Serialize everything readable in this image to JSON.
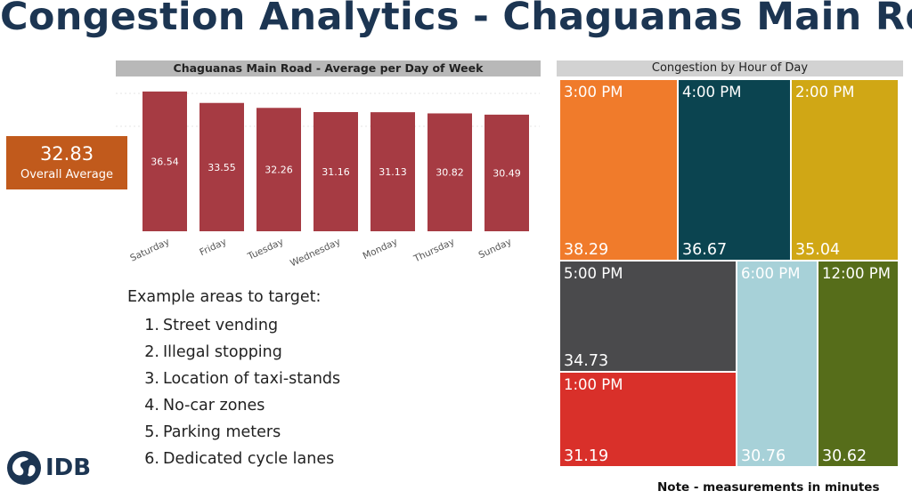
{
  "title": "Congestion Analytics - Chaguanas Main Rd",
  "kpi": {
    "value": "32.83",
    "label": "Overall Average"
  },
  "chart_data": [
    {
      "type": "bar",
      "title": "Chaguanas Main Road - Average per Day of Week",
      "categories": [
        "Saturday",
        "Friday",
        "Tuesday",
        "Wednesday",
        "Monday",
        "Thursday",
        "Sunday"
      ],
      "values": [
        36.54,
        33.55,
        32.26,
        31.16,
        31.13,
        30.82,
        30.49
      ],
      "value_labels": [
        "36.54",
        "33.55",
        "32.26",
        "31.16",
        "31.13",
        "30.82",
        "30.49"
      ],
      "xlabel": "",
      "ylabel": "",
      "ylim": [
        0,
        40
      ],
      "bar_color": "#a63b43"
    },
    {
      "type": "treemap",
      "title": "Congestion by Hour of Day",
      "tiles": [
        {
          "label": "3:00 PM",
          "value": 38.29,
          "display": "38.29",
          "color": "#f07b2b"
        },
        {
          "label": "4:00 PM",
          "value": 36.67,
          "display": "36.67",
          "color": "#0b4450"
        },
        {
          "label": "2:00 PM",
          "value": 35.04,
          "display": "35.04",
          "color": "#d0a715"
        },
        {
          "label": "5:00 PM",
          "value": 34.73,
          "display": "34.73",
          "color": "#4a4a4c"
        },
        {
          "label": "6:00 PM",
          "value": 30.76,
          "display": "30.76",
          "color": "#a7d1d8"
        },
        {
          "label": "12:00 PM",
          "value": 30.62,
          "display": "30.62",
          "color": "#566d1a"
        },
        {
          "label": "1:00 PM",
          "value": 31.19,
          "display": "31.19",
          "color": "#d9302a"
        }
      ]
    }
  ],
  "targets": {
    "heading": "Example areas to target:",
    "items": [
      {
        "num": "1.",
        "text": "Street vending"
      },
      {
        "num": "2.",
        "text": "Illegal stopping"
      },
      {
        "num": "3.",
        "text": "Location of taxi-stands"
      },
      {
        "num": "4.",
        "text": "No-car zones"
      },
      {
        "num": "5.",
        "text": "Parking meters"
      },
      {
        "num": "6.",
        "text": "Dedicated cycle lanes"
      }
    ]
  },
  "logo": {
    "text": "IDB"
  },
  "note": "Note - measurements in minutes"
}
